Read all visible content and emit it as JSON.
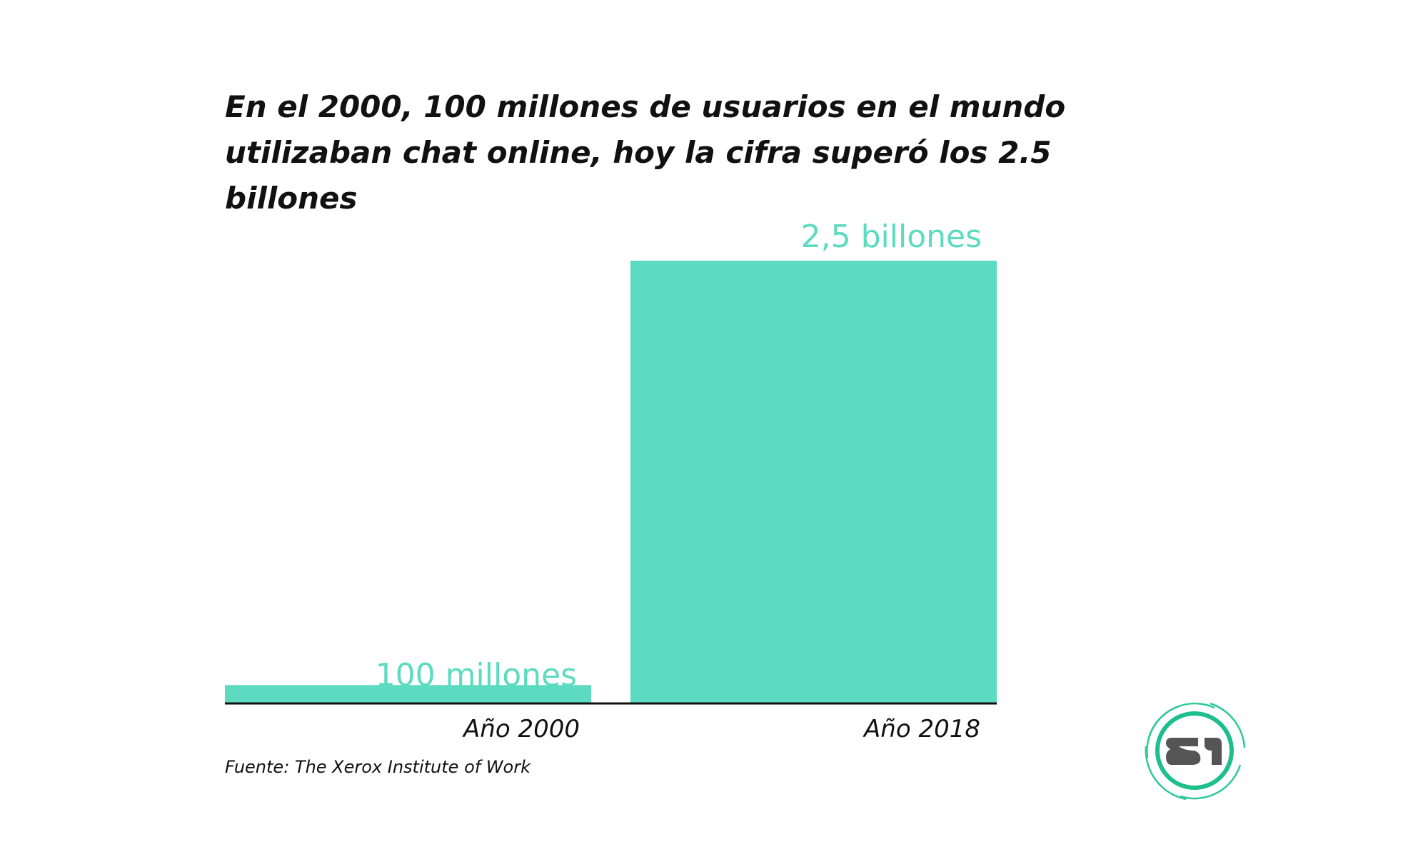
{
  "title_lines": [
    "En el 2000, 100 millones de usuarios en el mundo",
    "utilizaban chat online, hoy la cifra superó los 2.5 billones"
  ],
  "source": "Fuente: The Xerox Institute of Work",
  "logo_text": "S1",
  "colors": {
    "bar": "#5cdbc0",
    "axis": "#111111",
    "logo_ring": "#1dbf8c",
    "logo_glyph": "#555555"
  },
  "chart_data": {
    "type": "bar",
    "title": "En el 2000, 100 millones de usuarios en el mundo utilizaban chat online, hoy la cifra superó los 2.5 billones",
    "categories": [
      "Año 2000",
      "Año 2018"
    ],
    "values": [
      100,
      2500
    ],
    "value_unit": "millones de usuarios",
    "data_labels": [
      "100 millones",
      "2,5 billones"
    ],
    "xlabel": "",
    "ylabel": "",
    "ylim": [
      0,
      2500
    ],
    "grid": false,
    "legend": "none"
  }
}
